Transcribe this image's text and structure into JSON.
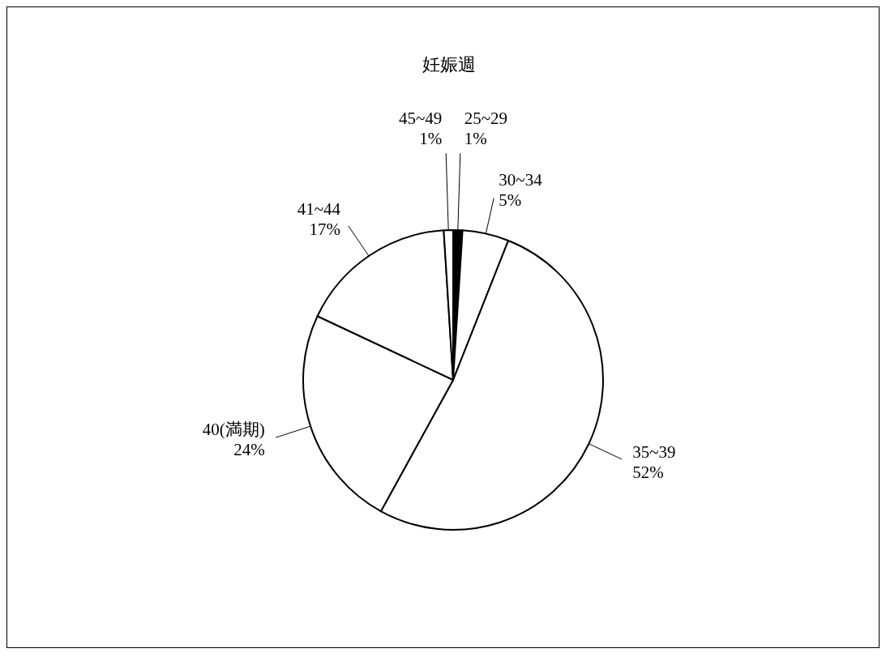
{
  "chart_data": {
    "type": "pie",
    "title": "妊娠週",
    "categories": [
      "25~29",
      "30~34",
      "35~39",
      "40(満期)",
      "41~44",
      "45~49"
    ],
    "values": [
      1,
      5,
      52,
      24,
      17,
      1
    ],
    "value_labels": [
      "1%",
      "5%",
      "52%",
      "24%",
      "17%",
      "1%"
    ],
    "colors": [
      "#000000",
      "#ffffff",
      "#ffffff",
      "#ffffff",
      "#ffffff",
      "#ffffff"
    ]
  }
}
